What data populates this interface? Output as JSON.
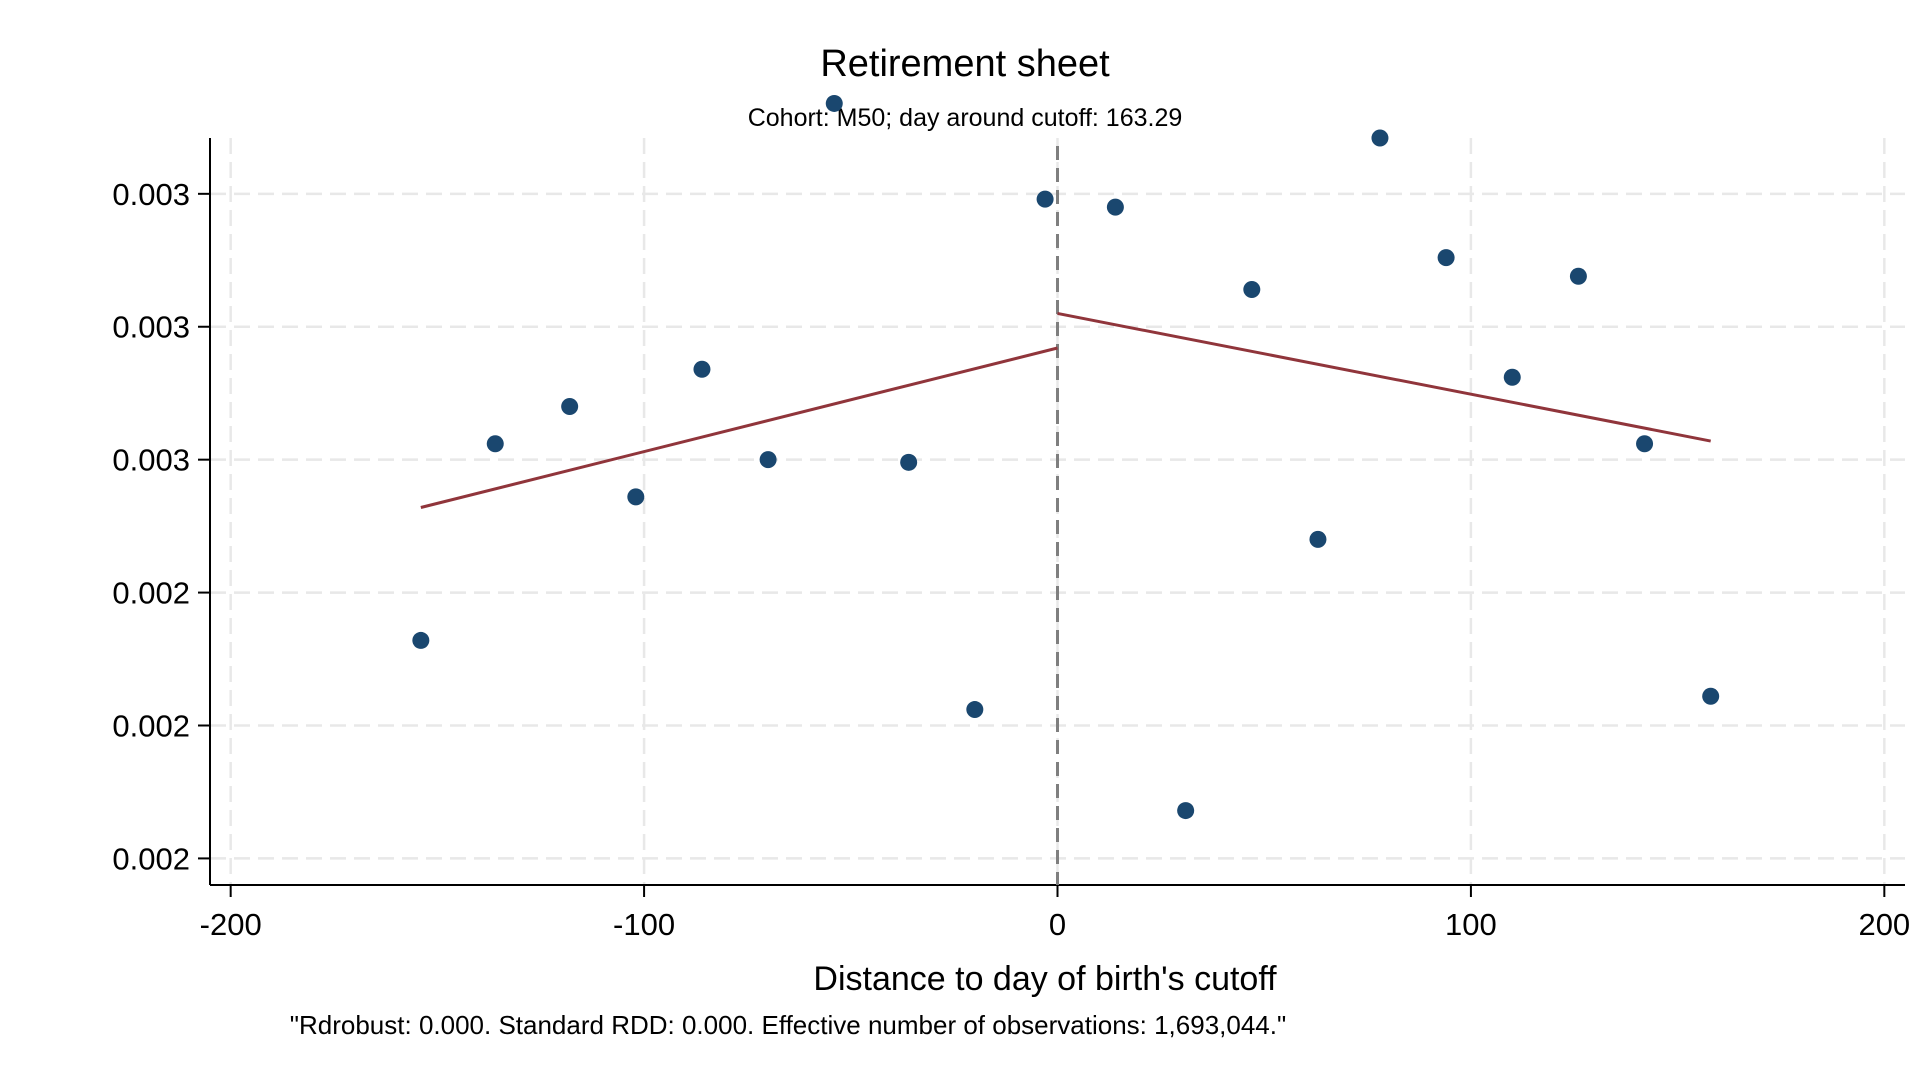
{
  "chart_data": {
    "type": "scatter",
    "title": "Retirement sheet",
    "subtitle": "Cohort: M50; day around cutoff:  163.29",
    "xlabel": "Distance to day of birth's cutoff",
    "ylabel": "",
    "note": "\"Rdrobust: 0.000. Standard RDD: 0.000. Effective number of observations: 1,693,044.\"",
    "x_ticks": [
      -200,
      -100,
      0,
      100,
      200
    ],
    "y_ticks": [
      0.00175,
      0.002,
      0.00225,
      0.0025,
      0.00275,
      0.003
    ],
    "y_tick_labels": [
      "0.002",
      "0.002",
      "0.002",
      "0.003",
      "0.003",
      "0.003"
    ],
    "xlim": [
      -205,
      205
    ],
    "ylim": [
      0.0017,
      0.003105
    ],
    "cutoff_x": 0,
    "grid": true,
    "colors": {
      "points": "#1a476f",
      "fit": "#90353b",
      "cutoff": "#7f7f7f",
      "grid": "#e8e8e8"
    },
    "series": [
      {
        "type": "scatter",
        "x": [
          -154,
          -136,
          -118,
          -102,
          -86,
          -70,
          -54,
          -36,
          -20,
          -3,
          14,
          31,
          47,
          63,
          78,
          94,
          110,
          126,
          142,
          158
        ],
        "y": [
          0.00216,
          0.00253,
          0.0026,
          0.00243,
          0.00267,
          0.0025,
          0.00317,
          0.002495,
          0.00203,
          0.00299,
          0.002975,
          0.00184,
          0.00282,
          0.00235,
          0.003105,
          0.00288,
          0.002655,
          0.002845,
          0.00253,
          0.002055
        ]
      },
      {
        "type": "line",
        "segment": "left",
        "x": [
          -154,
          0
        ],
        "y": [
          0.00241,
          0.00271
        ]
      },
      {
        "type": "line",
        "segment": "right",
        "x": [
          0,
          158
        ],
        "y": [
          0.002775,
          0.002535
        ]
      }
    ]
  }
}
